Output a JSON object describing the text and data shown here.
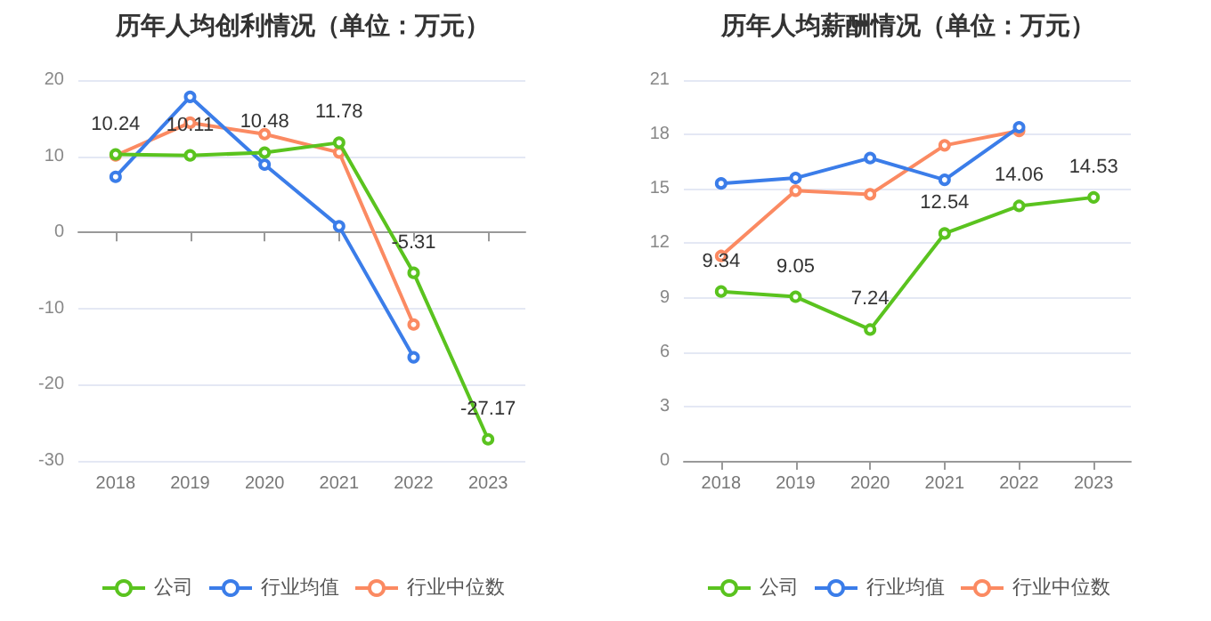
{
  "chart_data": [
    {
      "type": "line",
      "title": "历年人均创利情况（单位：万元）",
      "categories": [
        "2018",
        "2019",
        "2020",
        "2021",
        "2022",
        "2023"
      ],
      "ylim": [
        -30,
        20
      ],
      "yticks": [
        -30,
        -20,
        -10,
        0,
        10,
        20
      ],
      "grid": "y",
      "legend": "bottom",
      "marker": "circle",
      "line_style": "solid",
      "series": [
        {
          "name": "公司",
          "color": "#5ac31f",
          "values": [
            10.24,
            10.11,
            10.48,
            11.78,
            -5.31,
            -27.17
          ],
          "value_labels": [
            "10.24",
            "10.11",
            "10.48",
            "11.78",
            "-5.31",
            "-27.17"
          ]
        },
        {
          "name": "行业均值",
          "color": "#3b7de9",
          "values": [
            7.3,
            17.8,
            8.9,
            0.8,
            -16.4,
            null
          ]
        },
        {
          "name": "行业中位数",
          "color": "#fb8a62",
          "values": [
            10.1,
            14.4,
            12.9,
            10.5,
            -12.1,
            null
          ]
        }
      ]
    },
    {
      "type": "line",
      "title": "历年人均薪酬情况（单位：万元）",
      "categories": [
        "2018",
        "2019",
        "2020",
        "2021",
        "2022",
        "2023"
      ],
      "ylim": [
        0,
        21
      ],
      "yticks": [
        0,
        3,
        6,
        9,
        12,
        15,
        18,
        21
      ],
      "grid": "y",
      "legend": "bottom",
      "marker": "circle",
      "line_style": "solid",
      "series": [
        {
          "name": "公司",
          "color": "#5ac31f",
          "values": [
            9.34,
            9.05,
            7.24,
            12.54,
            14.06,
            14.53
          ],
          "value_labels": [
            "9.34",
            "9.05",
            "7.24",
            "12.54",
            "14.06",
            "14.53"
          ]
        },
        {
          "name": "行业均值",
          "color": "#3b7de9",
          "values": [
            15.3,
            15.6,
            16.7,
            15.5,
            18.4,
            null
          ]
        },
        {
          "name": "行业中位数",
          "color": "#fb8a62",
          "values": [
            11.3,
            14.9,
            14.7,
            17.4,
            18.2,
            null
          ]
        }
      ]
    }
  ]
}
